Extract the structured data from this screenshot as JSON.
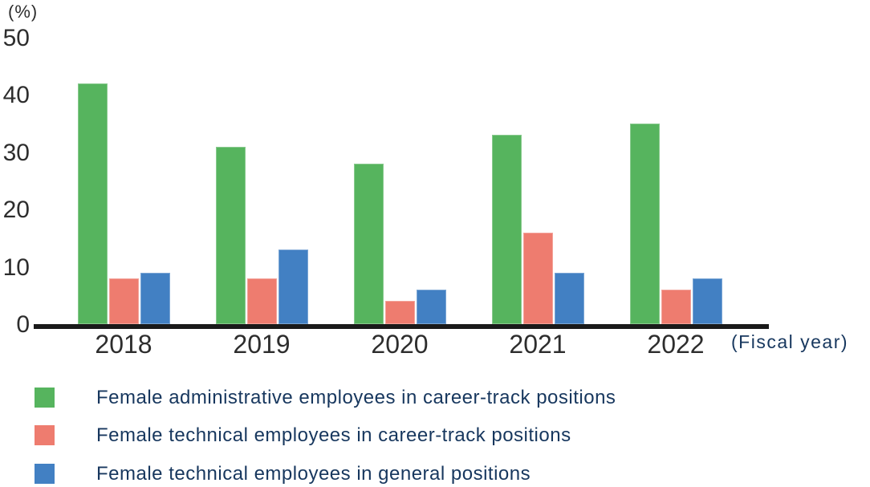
{
  "chart_data": {
    "type": "bar",
    "title": "",
    "unit_label": "(%)",
    "x_axis_label": "(Fiscal year)",
    "categories": [
      "2018",
      "2019",
      "2020",
      "2021",
      "2022"
    ],
    "series": [
      {
        "name": "Female administrative employees in career-track positions",
        "color": "#56b45e",
        "values": [
          42,
          31,
          28,
          33,
          35
        ]
      },
      {
        "name": "Female technical employees in career-track positions",
        "color": "#ee7c6f",
        "values": [
          8,
          8,
          4,
          16,
          6
        ]
      },
      {
        "name": "Female technical employees in general positions",
        "color": "#4280c3",
        "values": [
          9,
          13,
          6,
          9,
          8
        ]
      }
    ],
    "ylim": [
      0,
      50
    ],
    "yticks": [
      0,
      10,
      20,
      30,
      40,
      50
    ],
    "grid": false,
    "legend_position": "bottom",
    "colors": {
      "axis": "#1a1a1a",
      "tick_text": "#2d2d2d",
      "legend_text": "#17375e"
    }
  }
}
